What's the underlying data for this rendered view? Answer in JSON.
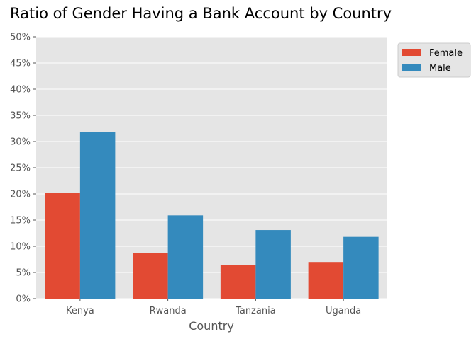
{
  "chart_data": {
    "type": "bar",
    "title": "Ratio of Gender Having a Bank Account by Country",
    "xlabel": "Country",
    "ylabel": "",
    "categories": [
      "Kenya",
      "Rwanda",
      "Tanzania",
      "Uganda"
    ],
    "series": [
      {
        "name": "Female",
        "color": "#E24A33",
        "values": [
          0.202,
          0.087,
          0.064,
          0.07
        ]
      },
      {
        "name": "Male",
        "color": "#348ABD",
        "values": [
          0.318,
          0.159,
          0.131,
          0.118
        ]
      }
    ],
    "ylim": [
      0,
      0.5
    ],
    "yticks": [
      0,
      0.05,
      0.1,
      0.15,
      0.2,
      0.25,
      0.3,
      0.35,
      0.4,
      0.45,
      0.5
    ],
    "ytick_labels": [
      "0%",
      "5%",
      "10%",
      "15%",
      "20%",
      "25%",
      "30%",
      "35%",
      "40%",
      "45%",
      "50%"
    ],
    "grid": true,
    "legend_position": "outside-top-right",
    "background_color": "#E5E5E5",
    "grid_color": "#FFFFFF"
  }
}
